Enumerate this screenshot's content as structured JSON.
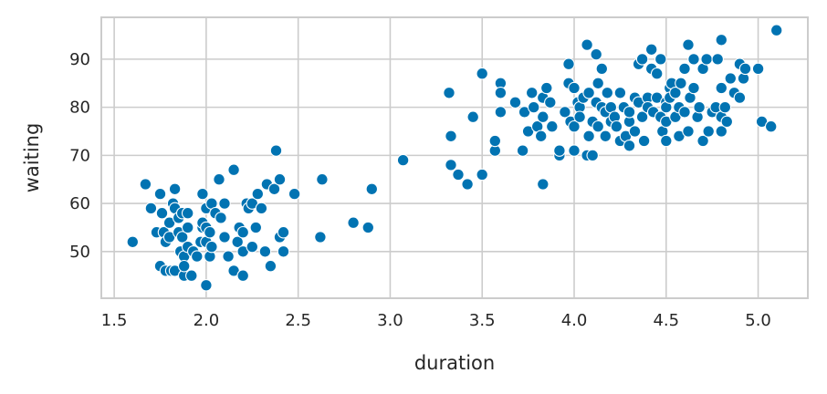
{
  "chart_data": {
    "type": "scatter",
    "title": "",
    "xlabel": "duration",
    "ylabel": "waiting",
    "xlim": [
      1.43,
      5.27
    ],
    "ylim": [
      40.3,
      98.7
    ],
    "xticks": [
      1.5,
      2.0,
      2.5,
      3.0,
      3.5,
      4.0,
      4.5,
      5.0
    ],
    "xtick_labels": [
      "1.5",
      "2.0",
      "2.5",
      "3.0",
      "3.5",
      "4.0",
      "4.5",
      "5.0"
    ],
    "yticks": [
      50,
      60,
      70,
      80,
      90
    ],
    "ytick_labels": [
      "50",
      "60",
      "70",
      "80",
      "90"
    ],
    "grid": true,
    "legend": "none",
    "colors": {
      "point": "#0173b2",
      "grid": "#cccccc",
      "frame": "#cccccc"
    },
    "series": [
      {
        "points": [
          [
            1.6,
            52
          ],
          [
            1.67,
            64
          ],
          [
            1.7,
            59
          ],
          [
            1.73,
            54
          ],
          [
            1.75,
            62
          ],
          [
            1.75,
            47
          ],
          [
            1.76,
            58
          ],
          [
            1.77,
            54
          ],
          [
            1.78,
            52
          ],
          [
            1.78,
            46
          ],
          [
            1.8,
            56
          ],
          [
            1.8,
            53
          ],
          [
            1.81,
            46
          ],
          [
            1.82,
            60
          ],
          [
            1.83,
            59
          ],
          [
            1.83,
            46
          ],
          [
            1.83,
            63
          ],
          [
            1.85,
            57
          ],
          [
            1.85,
            54
          ],
          [
            1.86,
            50
          ],
          [
            1.87,
            58
          ],
          [
            1.87,
            53
          ],
          [
            1.88,
            49
          ],
          [
            1.88,
            45
          ],
          [
            1.88,
            47
          ],
          [
            1.9,
            58
          ],
          [
            1.9,
            55
          ],
          [
            1.9,
            51
          ],
          [
            1.92,
            45
          ],
          [
            1.93,
            50
          ],
          [
            1.95,
            49
          ],
          [
            1.97,
            52
          ],
          [
            1.98,
            55
          ],
          [
            1.98,
            56
          ],
          [
            1.98,
            62
          ],
          [
            2.0,
            59
          ],
          [
            2.0,
            55
          ],
          [
            2.0,
            43
          ],
          [
            2.0,
            52
          ],
          [
            2.02,
            54
          ],
          [
            2.02,
            49
          ],
          [
            2.03,
            60
          ],
          [
            2.03,
            51
          ],
          [
            2.05,
            58
          ],
          [
            2.07,
            65
          ],
          [
            2.08,
            57
          ],
          [
            2.1,
            53
          ],
          [
            2.1,
            60
          ],
          [
            2.12,
            49
          ],
          [
            2.15,
            67
          ],
          [
            2.15,
            46
          ],
          [
            2.17,
            52
          ],
          [
            2.18,
            55
          ],
          [
            2.2,
            45
          ],
          [
            2.2,
            54
          ],
          [
            2.2,
            50
          ],
          [
            2.22,
            60
          ],
          [
            2.23,
            59
          ],
          [
            2.25,
            60
          ],
          [
            2.25,
            51
          ],
          [
            2.27,
            55
          ],
          [
            2.28,
            62
          ],
          [
            2.3,
            59
          ],
          [
            2.32,
            50
          ],
          [
            2.33,
            64
          ],
          [
            2.35,
            47
          ],
          [
            2.37,
            63
          ],
          [
            2.38,
            71
          ],
          [
            2.4,
            65
          ],
          [
            2.4,
            53
          ],
          [
            2.42,
            54
          ],
          [
            2.42,
            50
          ],
          [
            2.48,
            62
          ],
          [
            2.62,
            53
          ],
          [
            2.63,
            65
          ],
          [
            2.8,
            56
          ],
          [
            2.88,
            55
          ],
          [
            2.9,
            63
          ],
          [
            3.07,
            69
          ],
          [
            3.32,
            83
          ],
          [
            3.33,
            74
          ],
          [
            3.33,
            68
          ],
          [
            3.37,
            66
          ],
          [
            3.42,
            64
          ],
          [
            3.45,
            78
          ],
          [
            3.5,
            87
          ],
          [
            3.5,
            66
          ],
          [
            3.57,
            71
          ],
          [
            3.57,
            73
          ],
          [
            3.6,
            85
          ],
          [
            3.6,
            83
          ],
          [
            3.6,
            79
          ],
          [
            3.68,
            81
          ],
          [
            3.72,
            71
          ],
          [
            3.73,
            79
          ],
          [
            3.75,
            75
          ],
          [
            3.77,
            83
          ],
          [
            3.78,
            80
          ],
          [
            3.8,
            76
          ],
          [
            3.82,
            74
          ],
          [
            3.83,
            82
          ],
          [
            3.83,
            78
          ],
          [
            3.83,
            64
          ],
          [
            3.85,
            84
          ],
          [
            3.87,
            81
          ],
          [
            3.88,
            76
          ],
          [
            3.92,
            70
          ],
          [
            3.92,
            71
          ],
          [
            3.95,
            79
          ],
          [
            3.97,
            89
          ],
          [
            3.97,
            85
          ],
          [
            3.98,
            77
          ],
          [
            4.0,
            84
          ],
          [
            4.0,
            76
          ],
          [
            4.0,
            71
          ],
          [
            4.02,
            81
          ],
          [
            4.03,
            80
          ],
          [
            4.03,
            78
          ],
          [
            4.05,
            82
          ],
          [
            4.07,
            93
          ],
          [
            4.07,
            70
          ],
          [
            4.08,
            74
          ],
          [
            4.08,
            83
          ],
          [
            4.1,
            77
          ],
          [
            4.1,
            70
          ],
          [
            4.12,
            91
          ],
          [
            4.12,
            81
          ],
          [
            4.13,
            85
          ],
          [
            4.13,
            76
          ],
          [
            4.15,
            80
          ],
          [
            4.15,
            88
          ],
          [
            4.17,
            74
          ],
          [
            4.17,
            79
          ],
          [
            4.18,
            83
          ],
          [
            4.2,
            77
          ],
          [
            4.2,
            80
          ],
          [
            4.22,
            78
          ],
          [
            4.23,
            76
          ],
          [
            4.25,
            73
          ],
          [
            4.25,
            83
          ],
          [
            4.27,
            80
          ],
          [
            4.28,
            74
          ],
          [
            4.3,
            77
          ],
          [
            4.3,
            79
          ],
          [
            4.3,
            72
          ],
          [
            4.33,
            75
          ],
          [
            4.33,
            82
          ],
          [
            4.35,
            89
          ],
          [
            4.35,
            81
          ],
          [
            4.37,
            90
          ],
          [
            4.37,
            78
          ],
          [
            4.38,
            73
          ],
          [
            4.4,
            82
          ],
          [
            4.4,
            80
          ],
          [
            4.42,
            92
          ],
          [
            4.42,
            88
          ],
          [
            4.43,
            79
          ],
          [
            4.45,
            87
          ],
          [
            4.45,
            82
          ],
          [
            4.47,
            90
          ],
          [
            4.47,
            78
          ],
          [
            4.48,
            75
          ],
          [
            4.5,
            77
          ],
          [
            4.5,
            81
          ],
          [
            4.5,
            73
          ],
          [
            4.5,
            80
          ],
          [
            4.52,
            84
          ],
          [
            4.52,
            82
          ],
          [
            4.53,
            85
          ],
          [
            4.55,
            78
          ],
          [
            4.55,
            83
          ],
          [
            4.57,
            80
          ],
          [
            4.57,
            74
          ],
          [
            4.58,
            85
          ],
          [
            4.6,
            88
          ],
          [
            4.6,
            79
          ],
          [
            4.62,
            93
          ],
          [
            4.62,
            75
          ],
          [
            4.63,
            82
          ],
          [
            4.65,
            90
          ],
          [
            4.65,
            84
          ],
          [
            4.67,
            78
          ],
          [
            4.68,
            80
          ],
          [
            4.7,
            73
          ],
          [
            4.7,
            88
          ],
          [
            4.72,
            90
          ],
          [
            4.73,
            75
          ],
          [
            4.75,
            79
          ],
          [
            4.77,
            80
          ],
          [
            4.78,
            90
          ],
          [
            4.8,
            94
          ],
          [
            4.8,
            84
          ],
          [
            4.8,
            78
          ],
          [
            4.8,
            75
          ],
          [
            4.82,
            80
          ],
          [
            4.83,
            77
          ],
          [
            4.85,
            86
          ],
          [
            4.87,
            83
          ],
          [
            4.9,
            89
          ],
          [
            4.9,
            82
          ],
          [
            4.92,
            86
          ],
          [
            4.93,
            88
          ],
          [
            5.0,
            88
          ],
          [
            5.02,
            77
          ],
          [
            5.07,
            76
          ],
          [
            5.1,
            96
          ]
        ]
      }
    ]
  }
}
